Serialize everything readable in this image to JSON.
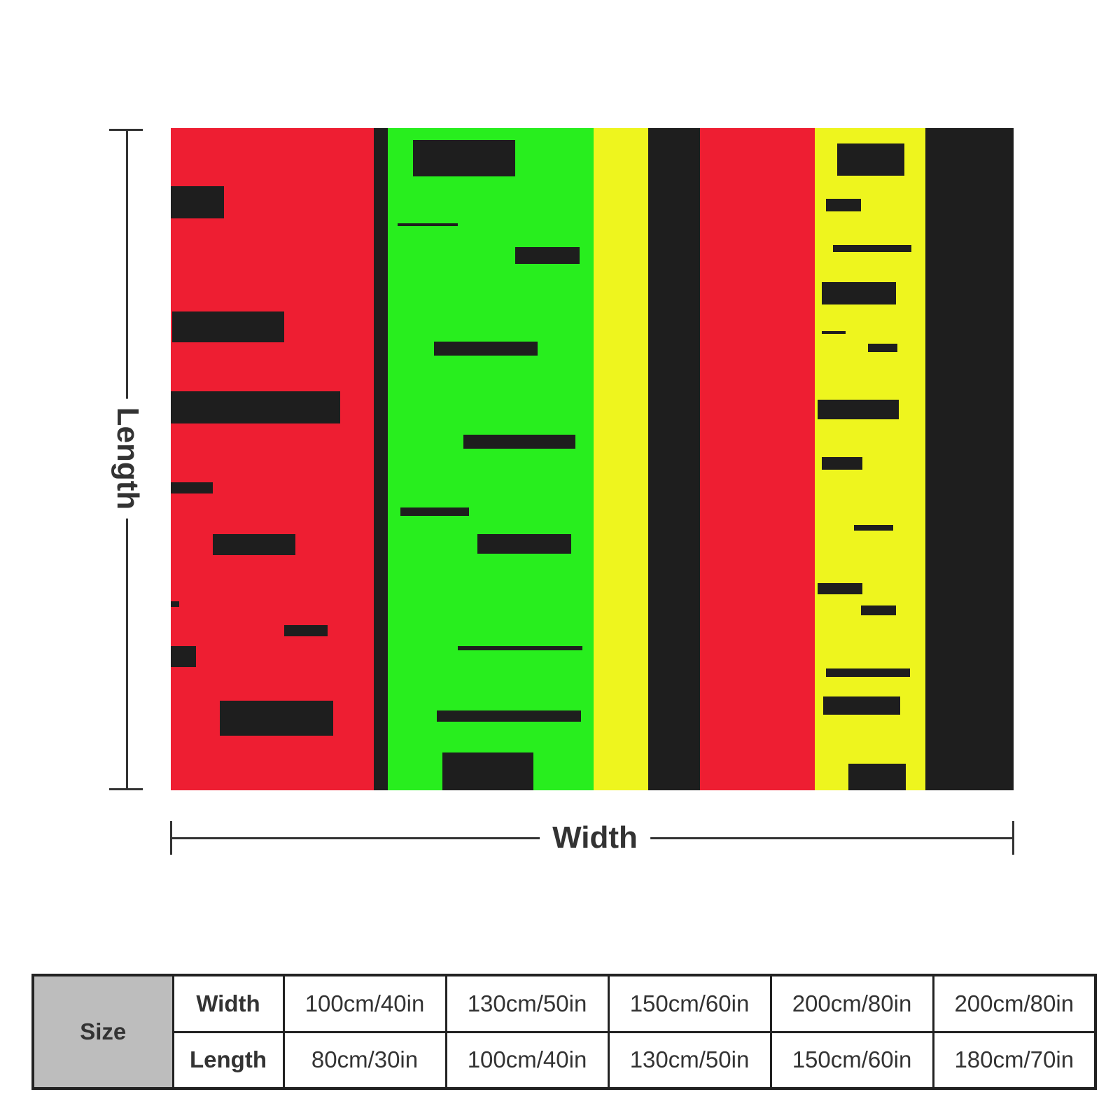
{
  "dimensions": {
    "length_label": "Length",
    "width_label": "Width"
  },
  "colors": {
    "red": "#ee1e32",
    "green": "#28ee1e",
    "yellow": "#eef51e",
    "black": "#1e1e1e",
    "gray_header": "#bdbdbd"
  },
  "size_table": {
    "header": "Size",
    "rows": [
      {
        "label": "Width",
        "values": [
          "100cm/40in",
          "130cm/50in",
          "150cm/60in",
          "200cm/80in",
          "200cm/80in"
        ]
      },
      {
        "label": "Length",
        "values": [
          "80cm/30in",
          "100cm/40in",
          "130cm/50in",
          "150cm/60in",
          "180cm/70in"
        ]
      }
    ]
  }
}
